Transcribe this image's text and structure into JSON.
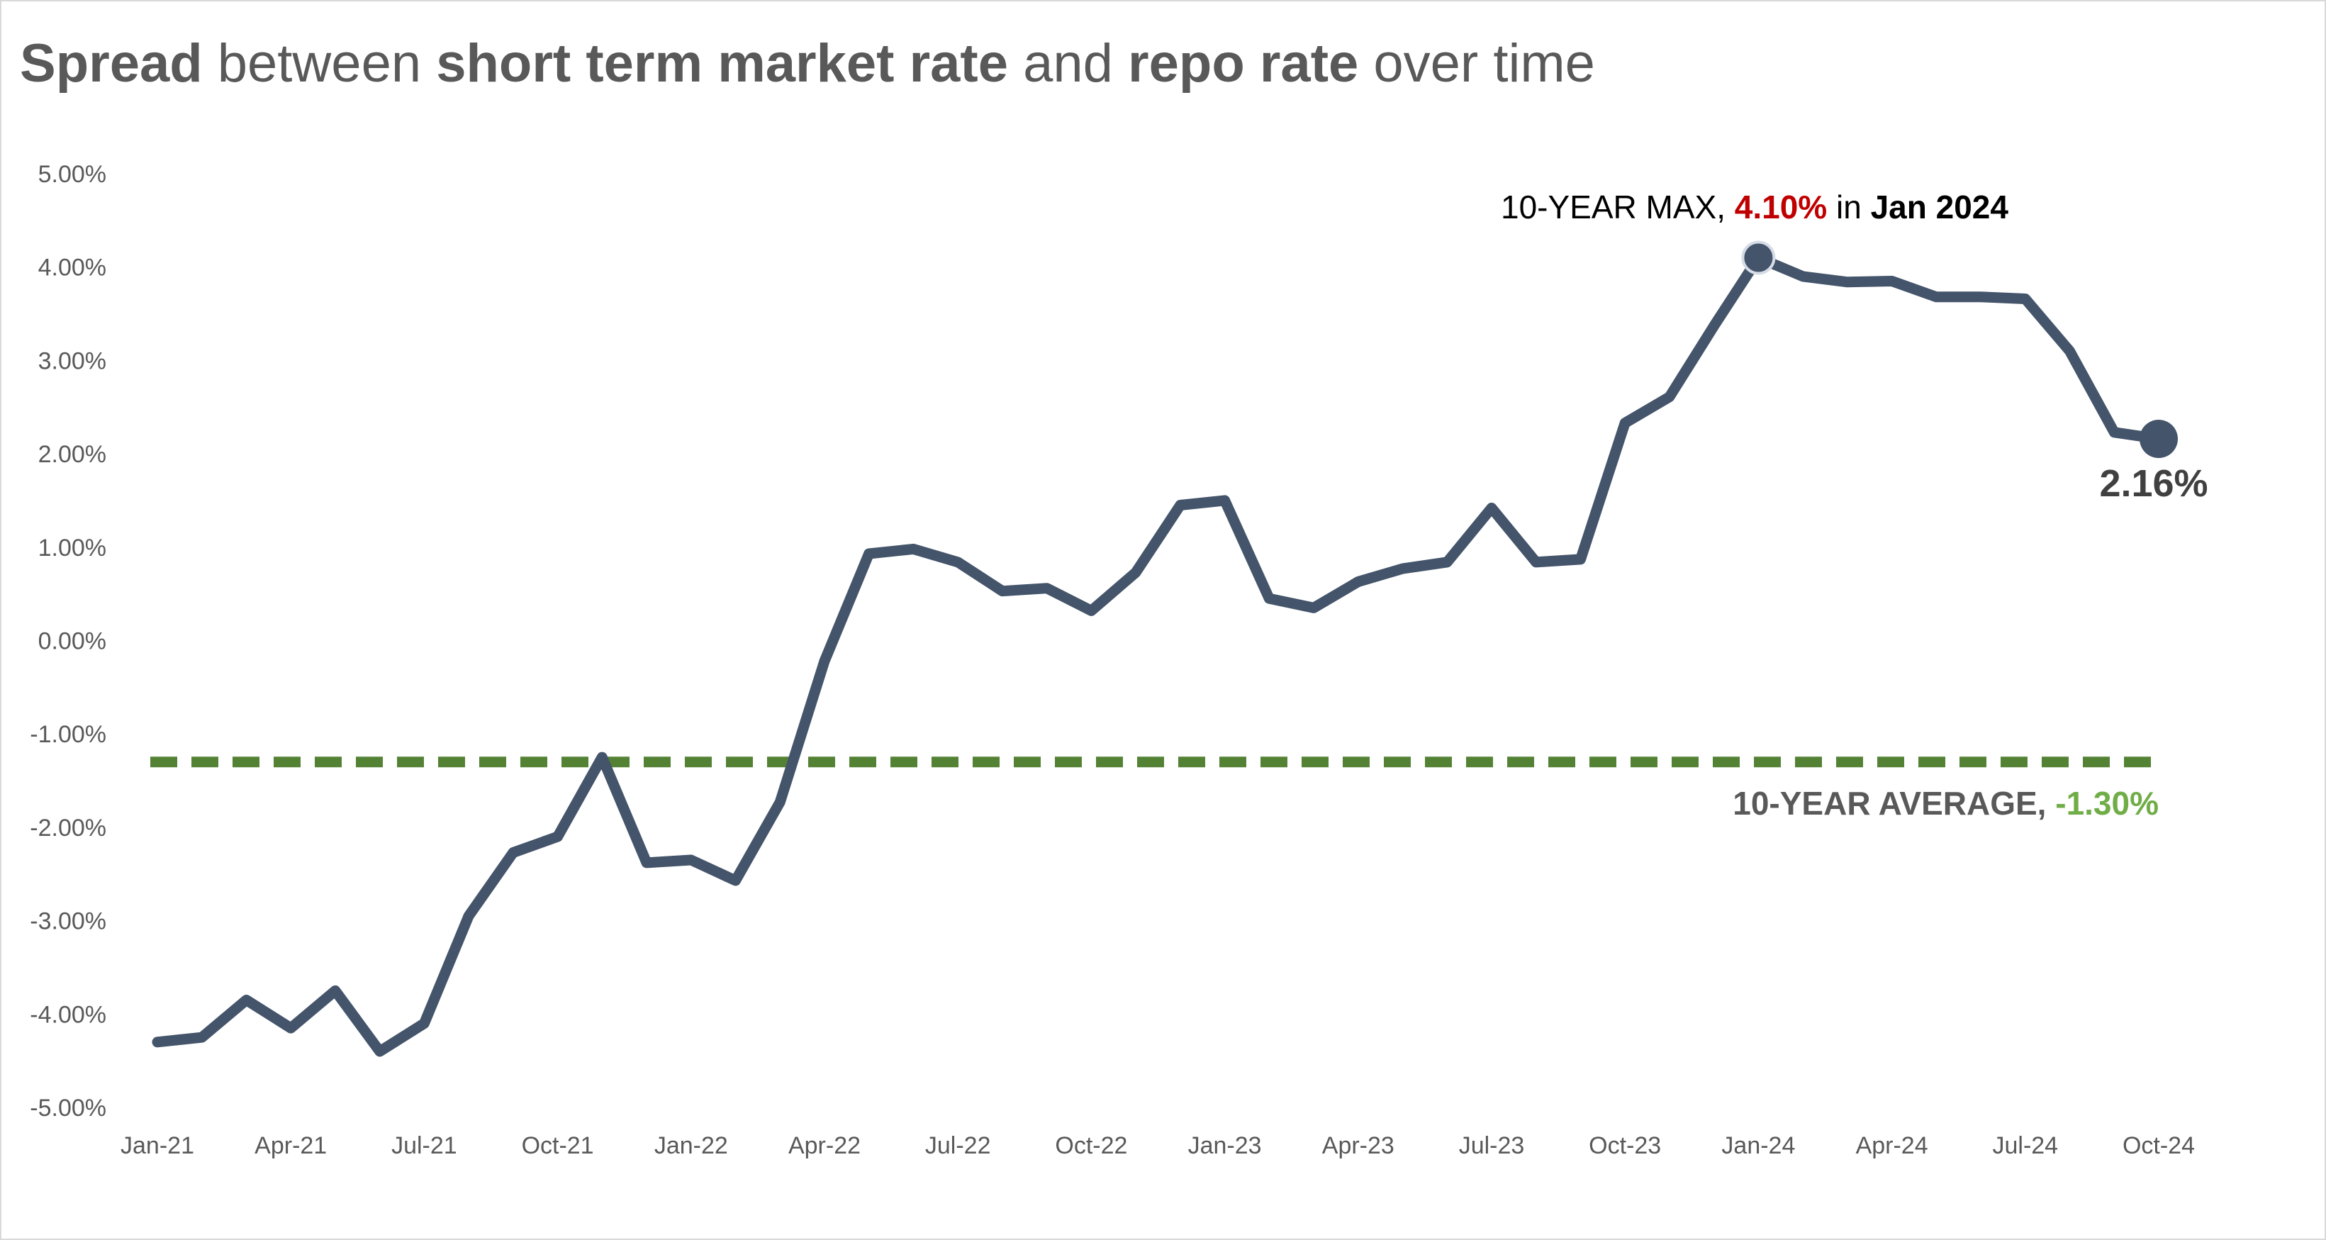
{
  "title": {
    "part1": "Spread",
    "part2": " between ",
    "part3": "short term market rate",
    "part4": " and ",
    "part5": "repo rate",
    "part6": " over time"
  },
  "colors": {
    "line": "#44546a",
    "average": "#548235",
    "max_value": "#c00000",
    "avg_value": "#70ad47",
    "axis_text": "#595959"
  },
  "annotations": {
    "max": {
      "prefix": "10-YEAR MAX, ",
      "value": "4.10%",
      "middle": " in ",
      "date": "Jan 2024"
    },
    "avg": {
      "prefix": "10-YEAR AVERAGE, ",
      "value": "-1.30%"
    },
    "last": "2.16%"
  },
  "chart_data": {
    "type": "line",
    "title": "Spread between short term market rate and repo rate over time",
    "xlabel": "",
    "ylabel": "",
    "ylim": [
      -5,
      5
    ],
    "y_ticks": [
      5,
      4,
      3,
      2,
      1,
      0,
      -1,
      -2,
      -3,
      -4,
      -5
    ],
    "y_tick_labels": [
      "5.00%",
      "4.00%",
      "3.00%",
      "2.00%",
      "1.00%",
      "0.00%",
      "-1.00%",
      "-2.00%",
      "-3.00%",
      "-4.00%",
      "-5.00%"
    ],
    "x_tick_labels": [
      "Jan-21",
      "Apr-21",
      "Jul-21",
      "Oct-21",
      "Jan-22",
      "Apr-22",
      "Jul-22",
      "Oct-22",
      "Jan-23",
      "Apr-23",
      "Jul-23",
      "Oct-23",
      "Jan-24",
      "Apr-24",
      "Jul-24",
      "Oct-24"
    ],
    "grid": false,
    "series": [
      {
        "name": "Spread",
        "x": [
          "Jan-21",
          "Feb-21",
          "Mar-21",
          "Apr-21",
          "May-21",
          "Jun-21",
          "Jul-21",
          "Aug-21",
          "Sep-21",
          "Oct-21",
          "Nov-21",
          "Dec-21",
          "Jan-22",
          "Feb-22",
          "Mar-22",
          "Apr-22",
          "May-22",
          "Jun-22",
          "Jul-22",
          "Aug-22",
          "Sep-22",
          "Oct-22",
          "Nov-22",
          "Dec-22",
          "Jan-23",
          "Feb-23",
          "Mar-23",
          "Apr-23",
          "May-23",
          "Jun-23",
          "Jul-23",
          "Aug-23",
          "Sep-23",
          "Oct-23",
          "Nov-23",
          "Dec-23",
          "Jan-24",
          "Feb-24",
          "Mar-24",
          "Apr-24",
          "May-24",
          "Jun-24",
          "Jul-24",
          "Aug-24",
          "Sep-24",
          "Oct-24"
        ],
        "values": [
          -4.3,
          -4.25,
          -3.85,
          -4.15,
          -3.75,
          -4.4,
          -4.1,
          -2.95,
          -2.27,
          -2.1,
          -1.25,
          -2.38,
          -2.35,
          -2.57,
          -1.73,
          -0.22,
          0.93,
          0.98,
          0.84,
          0.53,
          0.56,
          0.32,
          0.73,
          1.45,
          1.5,
          0.45,
          0.35,
          0.63,
          0.77,
          0.84,
          1.42,
          0.84,
          0.87,
          2.33,
          2.61,
          3.37,
          4.1,
          3.9,
          3.84,
          3.85,
          3.68,
          3.68,
          3.66,
          3.1,
          2.23,
          2.16
        ]
      },
      {
        "name": "10-year average",
        "constant": -1.3
      }
    ],
    "max_point": {
      "x": "Jan-24",
      "value": 4.1
    },
    "last_point": {
      "x": "Oct-24",
      "value": 2.16
    }
  }
}
